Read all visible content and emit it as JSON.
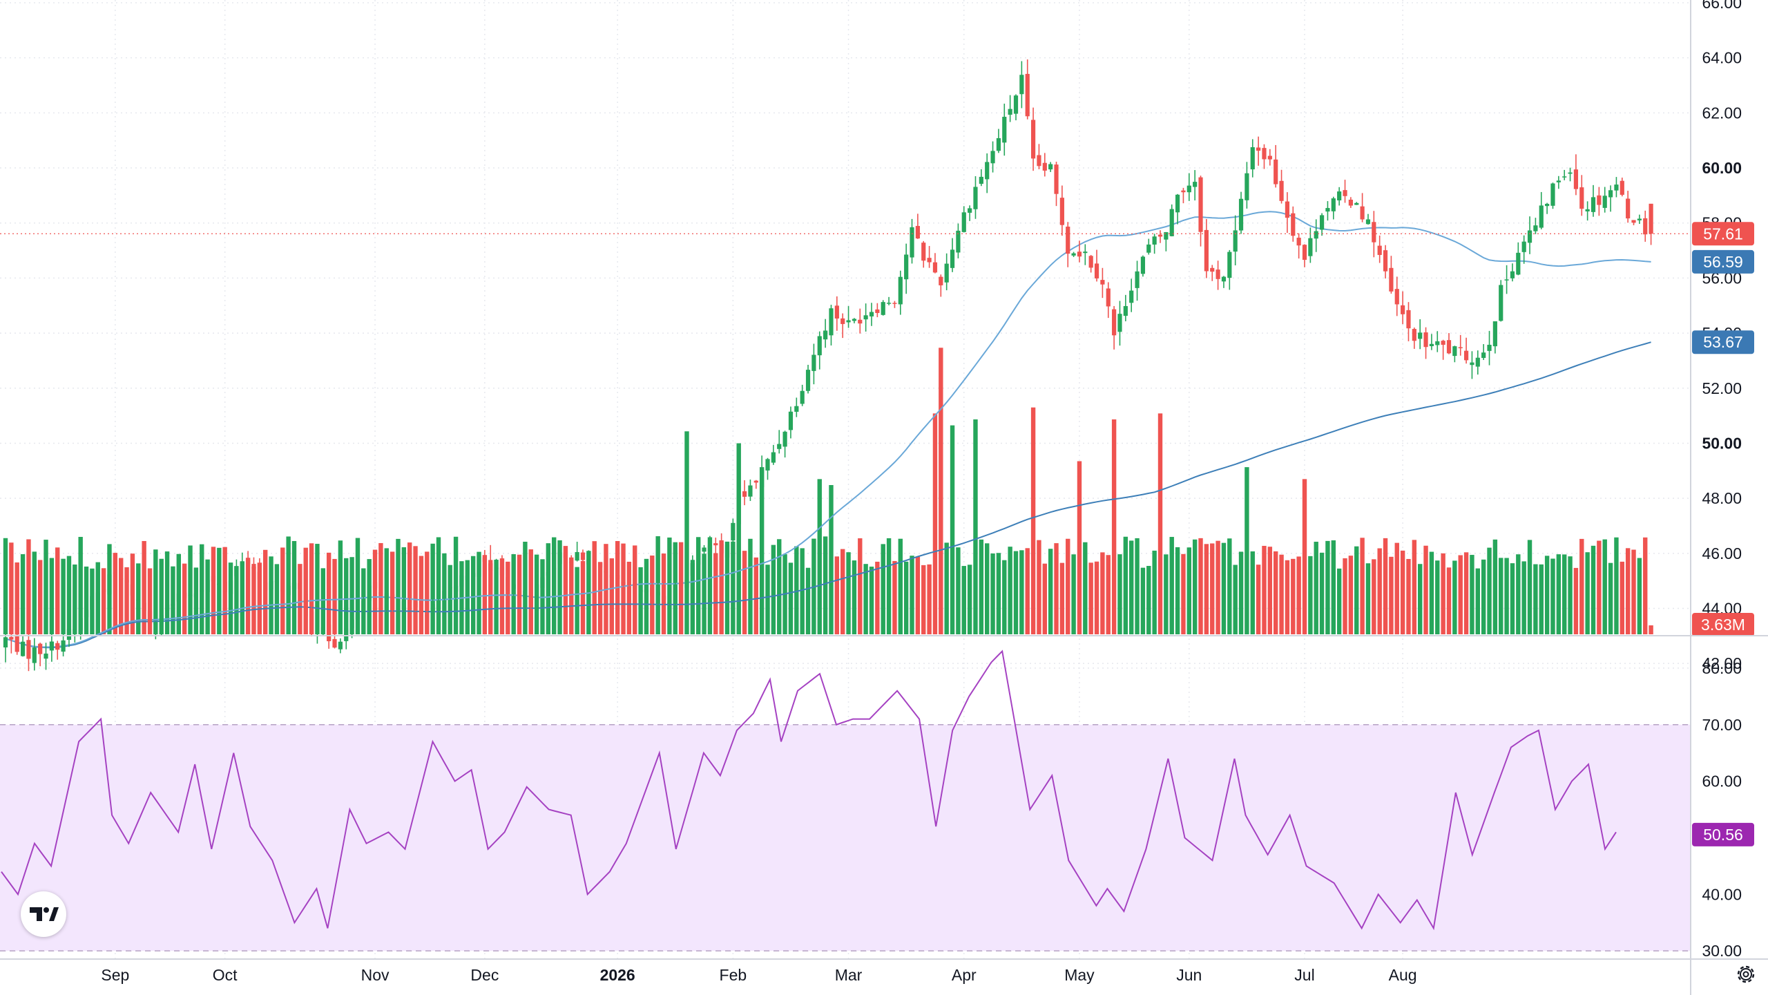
{
  "chart_data": [
    {
      "type": "candlestick",
      "pane": "price",
      "yrange": [
        40.9,
        66.0
      ],
      "y_ticks": [
        "42.00",
        "44.00",
        "46.00",
        "48.00",
        "50.00",
        "52.00",
        "54.00",
        "56.00",
        "58.00",
        "60.00",
        "62.00",
        "64.00",
        "66.00"
      ],
      "y_ticks_bold": [
        "50.00",
        "60.00"
      ],
      "x_ticks": [
        "Sep",
        "Oct",
        "Nov",
        "Dec",
        "2026",
        "Feb",
        "Mar",
        "Apr",
        "May",
        "Jun",
        "Jul",
        "Aug"
      ],
      "x_ticks_bold": [
        "2026"
      ],
      "last_price": "57.61",
      "ma_fast_value": "56.59",
      "ma_slow_value": "53.67",
      "close_anchors": [
        [
          0,
          42.9
        ],
        [
          4,
          42.4
        ],
        [
          8,
          42.6
        ],
        [
          12,
          43.2
        ],
        [
          15,
          44.4
        ],
        [
          19,
          45.2
        ],
        [
          22,
          44.6
        ],
        [
          25,
          43.6
        ],
        [
          30,
          44.3
        ],
        [
          35,
          45.0
        ],
        [
          38,
          44.7
        ],
        [
          41,
          45.9
        ],
        [
          44,
          44.9
        ],
        [
          48,
          44.8
        ],
        [
          51,
          44.6
        ],
        [
          53,
          43.3
        ],
        [
          57,
          42.8
        ],
        [
          60,
          43.4
        ],
        [
          63,
          44.6
        ],
        [
          67,
          44.2
        ],
        [
          71,
          44.0
        ],
        [
          73,
          43.7
        ],
        [
          76,
          44.4
        ],
        [
          79,
          45.1
        ],
        [
          82,
          45.7
        ],
        [
          85,
          45.4
        ],
        [
          88,
          44.6
        ],
        [
          91,
          44.3
        ],
        [
          94,
          45.5
        ],
        [
          97,
          46.0
        ],
        [
          100,
          45.7
        ],
        [
          103,
          45.7
        ],
        [
          105,
          44.9
        ],
        [
          108,
          44.6
        ],
        [
          112,
          44.4
        ],
        [
          115,
          44.3
        ],
        [
          118,
          45.3
        ],
        [
          121,
          46.4
        ],
        [
          124,
          45.9
        ],
        [
          127,
          47.9
        ],
        [
          131,
          48.9
        ],
        [
          134,
          50.1
        ],
        [
          137,
          51.6
        ],
        [
          140,
          53.3
        ],
        [
          143,
          54.8
        ],
        [
          146,
          54.3
        ],
        [
          150,
          54.9
        ],
        [
          154,
          55.3
        ],
        [
          157,
          57.7
        ],
        [
          159,
          56.8
        ],
        [
          162,
          55.9
        ],
        [
          165,
          57.8
        ],
        [
          168,
          59.3
        ],
        [
          171,
          60.6
        ],
        [
          174,
          62.2
        ],
        [
          176,
          63.2
        ],
        [
          178,
          60.1
        ],
        [
          181,
          59.9
        ],
        [
          184,
          57.1
        ],
        [
          187,
          56.9
        ],
        [
          190,
          55.9
        ],
        [
          192,
          53.9
        ],
        [
          195,
          55.8
        ],
        [
          198,
          57.1
        ],
        [
          201,
          57.7
        ],
        [
          203,
          59.1
        ],
        [
          206,
          59.6
        ],
        [
          208,
          56.2
        ],
        [
          211,
          56.1
        ],
        [
          213,
          57.6
        ],
        [
          216,
          60.9
        ],
        [
          219,
          60.2
        ],
        [
          222,
          58.3
        ],
        [
          225,
          56.7
        ],
        [
          228,
          58.5
        ],
        [
          231,
          58.9
        ],
        [
          234,
          58.8
        ],
        [
          237,
          57.5
        ],
        [
          240,
          55.4
        ],
        [
          243,
          54.1
        ],
        [
          246,
          53.6
        ],
        [
          249,
          53.5
        ],
        [
          252,
          53.2
        ],
        [
          255,
          53.1
        ],
        [
          257,
          53.8
        ],
        [
          259,
          55.5
        ],
        [
          262,
          57.0
        ],
        [
          265,
          57.9
        ],
        [
          268,
          59.3
        ],
        [
          271,
          60.1
        ],
        [
          273,
          58.6
        ],
        [
          276,
          58.9
        ],
        [
          279,
          59.4
        ],
        [
          281,
          58.4
        ],
        [
          284,
          57.8
        ],
        [
          285,
          57.61
        ]
      ],
      "volume": {
        "last_value": "3.63M",
        "spikes": [
          [
            118,
            3.4
          ],
          [
            127,
            3.2
          ],
          [
            131,
            2.8
          ],
          [
            141,
            2.6
          ],
          [
            143,
            2.5
          ],
          [
            161,
            3.7
          ],
          [
            162,
            4.8
          ],
          [
            164,
            3.5
          ],
          [
            168,
            3.6
          ],
          [
            178,
            3.8
          ],
          [
            186,
            2.9
          ],
          [
            192,
            3.6
          ],
          [
            200,
            3.7
          ],
          [
            215,
            2.8
          ],
          [
            225,
            2.6
          ],
          [
            285,
            0.15
          ]
        ]
      }
    },
    {
      "type": "line",
      "pane": "rsi",
      "yrange": [
        28.8,
        82.8
      ],
      "y_ticks": [
        "30.00",
        "40.00",
        "50.00",
        "60.00",
        "70.00",
        "80.00"
      ],
      "band": [
        30,
        70
      ],
      "last_value": "50.56",
      "anchors": [
        [
          0,
          44
        ],
        [
          3,
          40
        ],
        [
          6,
          49
        ],
        [
          9,
          45
        ],
        [
          14,
          67
        ],
        [
          18,
          71
        ],
        [
          20,
          54
        ],
        [
          23,
          49
        ],
        [
          27,
          58
        ],
        [
          32,
          51
        ],
        [
          35,
          63
        ],
        [
          38,
          48
        ],
        [
          42,
          65
        ],
        [
          45,
          52
        ],
        [
          49,
          46
        ],
        [
          53,
          35
        ],
        [
          57,
          41
        ],
        [
          59,
          34
        ],
        [
          63,
          55
        ],
        [
          66,
          49
        ],
        [
          70,
          51
        ],
        [
          73,
          48
        ],
        [
          78,
          67
        ],
        [
          82,
          60
        ],
        [
          85,
          62
        ],
        [
          88,
          48
        ],
        [
          91,
          51
        ],
        [
          95,
          59
        ],
        [
          99,
          55
        ],
        [
          103,
          54
        ],
        [
          106,
          40
        ],
        [
          110,
          44
        ],
        [
          113,
          49
        ],
        [
          116,
          57
        ],
        [
          119,
          65
        ],
        [
          122,
          48
        ],
        [
          127,
          65
        ],
        [
          130,
          61
        ],
        [
          133,
          69
        ],
        [
          136,
          72
        ],
        [
          139,
          78
        ],
        [
          141,
          67
        ],
        [
          144,
          76
        ],
        [
          148,
          79
        ],
        [
          151,
          70
        ],
        [
          154,
          71
        ],
        [
          157,
          71
        ],
        [
          162,
          76
        ],
        [
          166,
          71
        ],
        [
          169,
          52
        ],
        [
          172,
          69
        ],
        [
          175,
          75
        ],
        [
          179,
          81
        ],
        [
          181,
          83
        ],
        [
          186,
          55
        ],
        [
          190,
          61
        ],
        [
          193,
          46
        ],
        [
          198,
          38
        ],
        [
          200,
          41
        ],
        [
          203,
          37
        ],
        [
          207,
          48
        ],
        [
          211,
          64
        ],
        [
          214,
          50
        ],
        [
          219,
          46
        ],
        [
          223,
          64
        ],
        [
          225,
          54
        ],
        [
          229,
          47
        ],
        [
          233,
          54
        ],
        [
          236,
          45
        ],
        [
          241,
          42
        ],
        [
          246,
          34
        ],
        [
          249,
          40
        ],
        [
          253,
          35
        ],
        [
          256,
          39
        ],
        [
          259,
          34
        ],
        [
          263,
          58
        ],
        [
          266,
          47
        ],
        [
          270,
          58
        ],
        [
          273,
          66
        ],
        [
          276,
          68
        ],
        [
          278,
          69
        ],
        [
          281,
          55
        ],
        [
          284,
          60
        ],
        [
          287,
          63
        ],
        [
          290,
          48
        ],
        [
          292,
          51
        ]
      ]
    }
  ]
}
